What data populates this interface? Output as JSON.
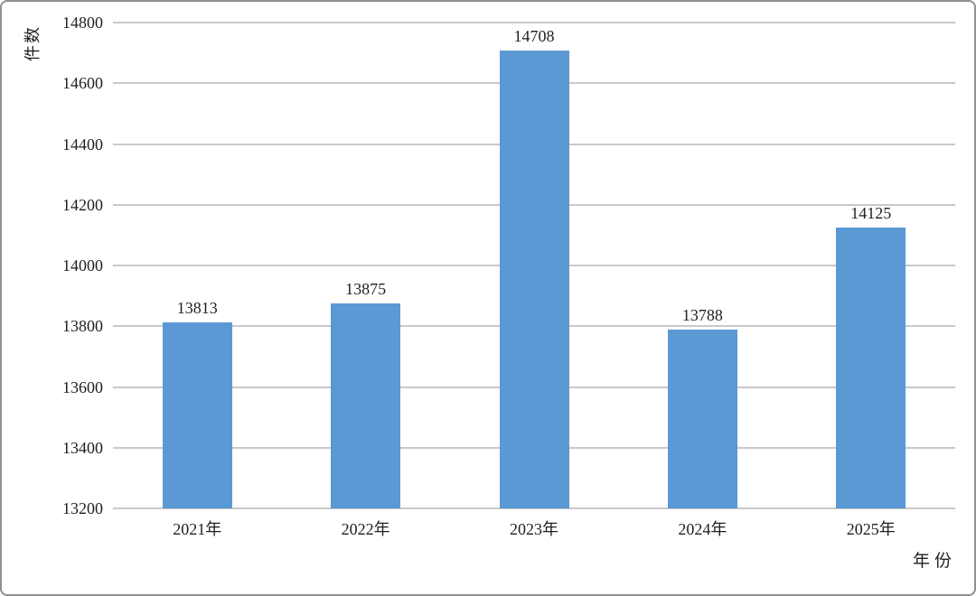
{
  "chart_data": {
    "type": "bar",
    "title": "",
    "xlabel": "年份",
    "ylabel": "件数",
    "categories": [
      "2021年",
      "2022年",
      "2023年",
      "2024年",
      "2025年"
    ],
    "values": [
      13813,
      13875,
      14708,
      13788,
      14125
    ],
    "ylim": [
      13200,
      14800
    ],
    "yticks": [
      13200,
      13400,
      13600,
      13800,
      14000,
      14200,
      14400,
      14600,
      14800
    ],
    "grid": true,
    "legend": false,
    "value_labels": true,
    "bar_color": "#5A99D3"
  },
  "colors": {
    "bar": "#5A99D3",
    "grid": "#C9C9C9",
    "text": "#1F1F1F",
    "frame_border": "#8F8F8F",
    "background": "#FFFFFF"
  }
}
